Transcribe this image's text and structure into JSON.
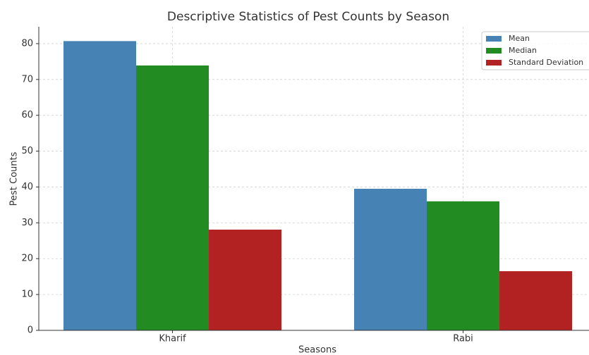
{
  "chart_data": {
    "type": "bar",
    "title": "Descriptive Statistics of Pest Counts by Season",
    "x_label": "Seasons",
    "y_label": "Pest Counts",
    "categories": [
      "Kharif",
      "Rabi"
    ],
    "series": [
      {
        "name": "Mean",
        "color": "#4682b4",
        "values": [
          80.7,
          39.5
        ]
      },
      {
        "name": "Median",
        "color": "#228b22",
        "values": [
          73.9,
          36.0
        ]
      },
      {
        "name": "Standard Deviation",
        "color": "#b22222",
        "values": [
          28.1,
          16.5
        ]
      }
    ],
    "ylim": [
      0,
      84.7
    ],
    "yticks": [
      0,
      10,
      20,
      30,
      40,
      50,
      60,
      70,
      80
    ],
    "grid": true,
    "legend": "upper right"
  }
}
